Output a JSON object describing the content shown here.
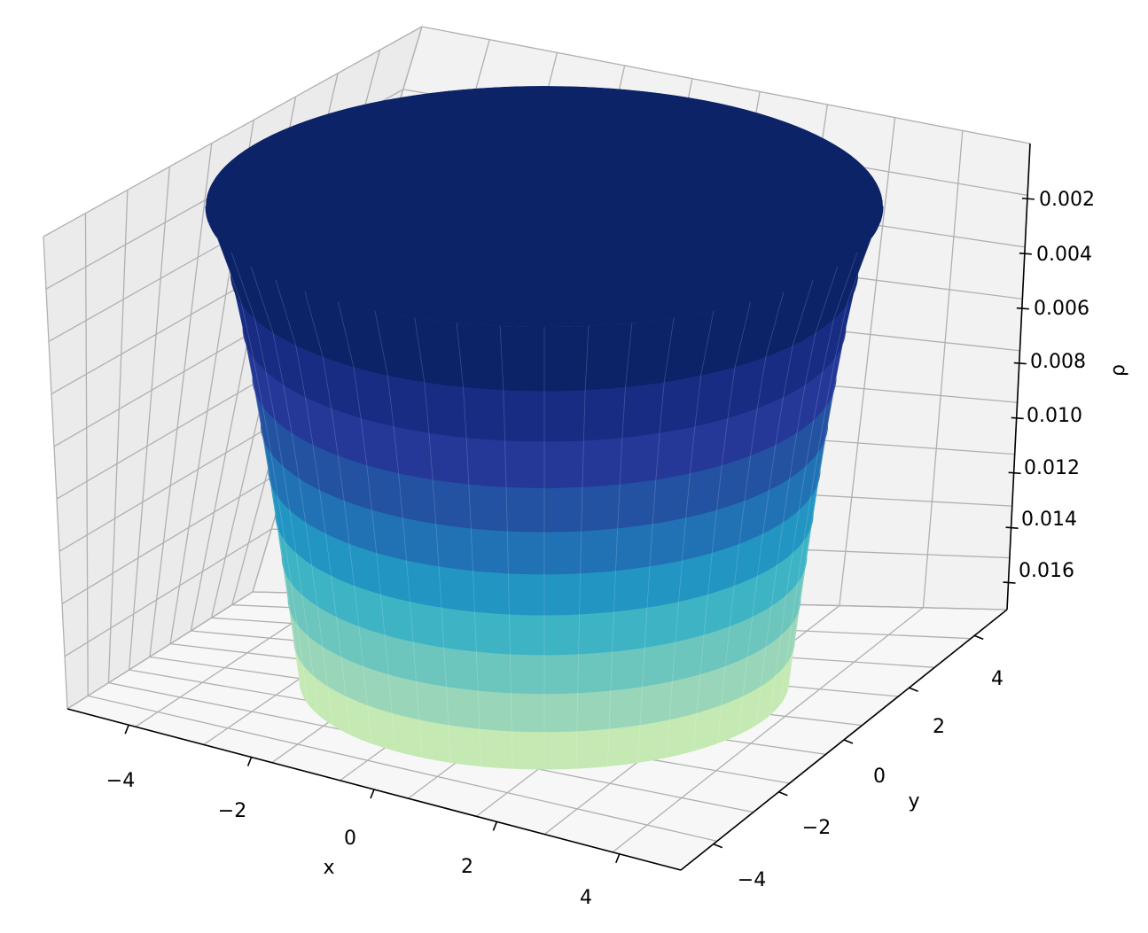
{
  "chart_data": {
    "type": "surface3d",
    "title": "",
    "xlabel": "x",
    "ylabel": "y",
    "zlabel": "ρ",
    "x_ticks": [
      "−4",
      "−2",
      "0",
      "2",
      "4"
    ],
    "y_ticks": [
      "−4",
      "−2",
      "0",
      "2",
      "4"
    ],
    "z_ticks": [
      "0.002",
      "0.004",
      "0.006",
      "0.008",
      "0.010",
      "0.012",
      "0.014",
      "0.016"
    ],
    "xlim": [
      -5,
      5
    ],
    "ylim": [
      -5,
      5
    ],
    "zlim": [
      0,
      0.017
    ],
    "z_axis_inverted": true,
    "grid": true,
    "colormap": "YlGnBu",
    "band_colors": [
      "#0c2368",
      "#192c84",
      "#253898",
      "#2352a2",
      "#2172b4",
      "#2295c2",
      "#3eb3c4",
      "#6cc6be",
      "#99d6b9",
      "#c4e9b3"
    ],
    "pane_colors": {
      "back": "#f2f2f2",
      "side": "#ebebeb",
      "floor": "#f7f7f7"
    },
    "grid_color": "#b0b0b0"
  }
}
